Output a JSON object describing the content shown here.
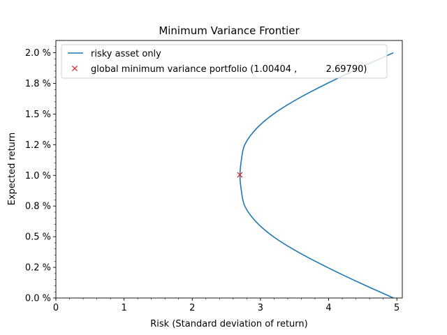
{
  "chart_data": {
    "type": "line",
    "title": "Minimum Variance Frontier",
    "xlabel": "Risk (Standard deviation of return)",
    "ylabel": "Expected return",
    "xlim": [
      0,
      5.08
    ],
    "ylim": [
      0,
      2.1
    ],
    "x_ticks": [
      0,
      1,
      2,
      3,
      4,
      5
    ],
    "x_tick_labels": [
      "0",
      "1",
      "2",
      "3",
      "4",
      "5"
    ],
    "y_ticks": [
      0,
      0.25,
      0.5,
      0.75,
      1.0,
      1.25,
      1.5,
      1.75,
      2.0
    ],
    "y_tick_labels": [
      "0.0 %",
      "0.2 %",
      "0.5 %",
      "0.8 %",
      "1.0 %",
      "1.2 %",
      "1.5 %",
      "1.8 %",
      "2.0 %"
    ],
    "minor_ticks": true,
    "grid": false,
    "legend_position": "top-left",
    "series": [
      {
        "name": "risky asset only",
        "color": "#1f77b4",
        "type": "line",
        "x": [
          4.95,
          4.45,
          3.98,
          3.55,
          3.19,
          2.93,
          2.77,
          2.72,
          2.7,
          2.72,
          2.77,
          2.93,
          3.19,
          3.55,
          3.98,
          4.45,
          4.95
        ],
        "y": [
          0.0,
          0.125,
          0.25,
          0.375,
          0.5,
          0.625,
          0.75,
          0.875,
          1.0,
          1.125,
          1.25,
          1.375,
          1.5,
          1.625,
          1.75,
          1.875,
          2.0
        ]
      },
      {
        "name": "global minimum variance portfolio (1.00404 ,          2.69790)",
        "color": "#d62728",
        "type": "marker",
        "marker": "x",
        "x": [
          2.6979
        ],
        "y": [
          1.00404
        ]
      }
    ]
  }
}
